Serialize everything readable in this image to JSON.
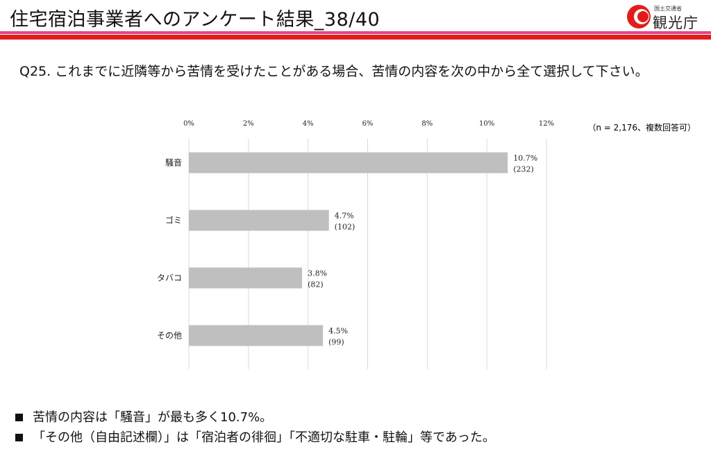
{
  "header": {
    "title": "住宅宿泊事業者へのアンケート結果_38/40",
    "logo_org": "国土交通省",
    "logo_name": "観光庁",
    "colors": {
      "pink": "#e2418b",
      "red": "#e21c1c"
    }
  },
  "question": "Q25. これまでに近隣等から苦情を受けたことがある場合、苦情の内容を次の中から全て選択して下さい。",
  "chart_data": {
    "type": "bar",
    "orientation": "horizontal",
    "categories": [
      "騒音",
      "ゴミ",
      "タバコ",
      "その他"
    ],
    "values": [
      10.7,
      4.7,
      3.8,
      4.5
    ],
    "value_labels": [
      "10.7%",
      "4.7%",
      "3.8%",
      "4.5%"
    ],
    "count_labels": [
      "(232)",
      "(102)",
      "(82)",
      "(99)"
    ],
    "xlim": [
      0,
      12
    ],
    "x_ticks": [
      "0%",
      "2%",
      "4%",
      "6%",
      "8%",
      "10%",
      "12%"
    ],
    "note": "（n = 2,176、複数回答可）",
    "grid": true,
    "bar_color": "#bfbfbf"
  },
  "notes": [
    "苦情の内容は「騒音」が最も多く10.7%。",
    "「その他（自由記述欄）」は「宿泊者の徘徊」「不適切な駐車・駐輪」等であった。"
  ]
}
